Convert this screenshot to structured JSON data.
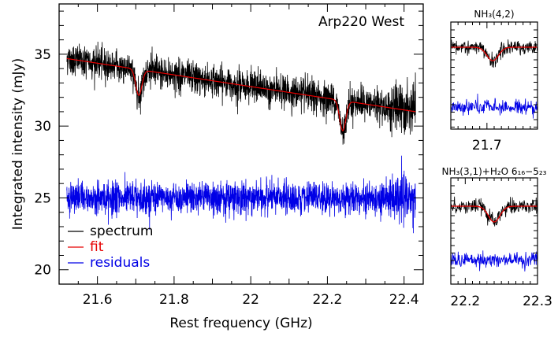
{
  "chart_data": [
    {
      "type": "line",
      "panel": "main",
      "annotation": "Arp220 West",
      "xlabel": "Rest frequency (GHz)",
      "ylabel": "Integrated intensity (mJy)",
      "xlim": [
        21.5,
        22.45
      ],
      "ylim": [
        19,
        38.5
      ],
      "xticks": [
        21.6,
        21.8,
        22,
        22.2,
        22.4
      ],
      "xtick_labels": [
        "21.6",
        "21.8",
        "22",
        "22.2",
        "22.4"
      ],
      "yticks": [
        20,
        25,
        30,
        35
      ],
      "ytick_labels": [
        "20",
        "25",
        "30",
        "35"
      ],
      "series": [
        {
          "name": "spectrum",
          "color": "#000000",
          "x_range": [
            21.52,
            22.43
          ],
          "continuum": [
            34.7,
            31.0
          ],
          "noise_rms": 0.55,
          "absorptions": [
            {
              "center": 21.708,
              "depth": 1.8,
              "width": 0.008
            },
            {
              "center": 22.24,
              "depth": 2.1,
              "width": 0.008
            }
          ]
        },
        {
          "name": "fit",
          "color": "#e60000",
          "x_range": [
            21.52,
            22.43
          ],
          "continuum": [
            34.7,
            31.0
          ],
          "absorptions": [
            {
              "center": 21.708,
              "depth": 1.8,
              "width": 0.008
            },
            {
              "center": 22.24,
              "depth": 2.1,
              "width": 0.008
            }
          ]
        },
        {
          "name": "residuals",
          "color": "#0000e6",
          "x_range": [
            21.52,
            22.43
          ],
          "level": 25.0,
          "noise_rms": 0.55
        }
      ],
      "legend": {
        "placement": "bottom-left",
        "entries": [
          "spectrum",
          "fit",
          "residuals"
        ]
      }
    },
    {
      "type": "line",
      "panel": "inset-top",
      "title": "NH₃(4,2)",
      "xlim": [
        21.65,
        21.77
      ],
      "xticks": [
        21.7
      ],
      "xtick_labels": [
        "21.7"
      ],
      "series": [
        {
          "name": "spectrum",
          "color": "#000000",
          "continuum": 35.0,
          "noise_rms": 0.5,
          "absorptions": [
            {
              "center": 21.708,
              "depth": 1.8,
              "width": 0.008
            }
          ]
        },
        {
          "name": "fit",
          "color": "#e60000",
          "continuum": 35.0,
          "absorptions": [
            {
              "center": 21.708,
              "depth": 1.8,
              "width": 0.008
            }
          ]
        },
        {
          "name": "residuals",
          "color": "#0000e6",
          "level": 25.0,
          "noise_rms": 0.5
        }
      ]
    },
    {
      "type": "line",
      "panel": "inset-bottom",
      "title": "NH₃(3,1)+H₂O 6₁₆−5₂₃",
      "xlim": [
        22.18,
        22.3
      ],
      "xticks": [
        22.2,
        22.3
      ],
      "xtick_labels": [
        "22.2",
        "22.3"
      ],
      "series": [
        {
          "name": "spectrum",
          "color": "#000000",
          "continuum": 31.6,
          "noise_rms": 0.5,
          "absorptions": [
            {
              "center": 22.24,
              "depth": 2.1,
              "width": 0.008
            }
          ]
        },
        {
          "name": "fit",
          "color": "#e60000",
          "continuum": 31.6,
          "absorptions": [
            {
              "center": 22.24,
              "depth": 2.1,
              "width": 0.008
            }
          ]
        },
        {
          "name": "residuals",
          "color": "#0000e6",
          "level": 25.0,
          "noise_rms": 0.5
        }
      ]
    }
  ]
}
